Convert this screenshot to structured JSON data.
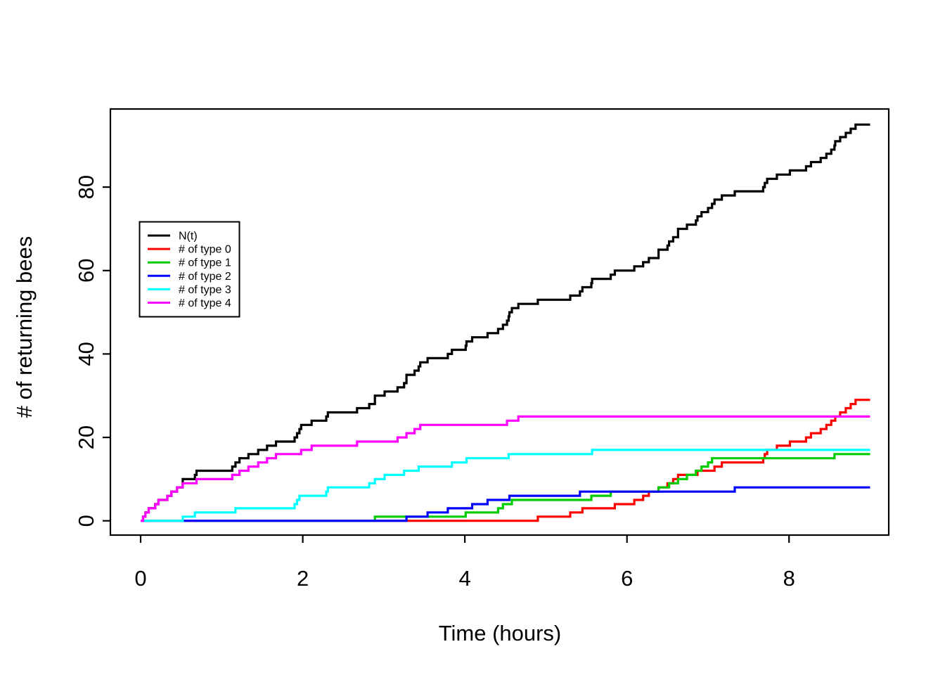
{
  "chart_data": {
    "type": "line",
    "subtype": "step-counting-process",
    "title": "",
    "xlabel": "Time (hours)",
    "ylabel": "# of returning bees",
    "x_range": [
      0,
      9
    ],
    "y_range": [
      0,
      95
    ],
    "x_ticks": [
      0,
      2,
      4,
      6,
      8
    ],
    "x_tick_labels": [
      "0",
      "2",
      "4",
      "6",
      "8"
    ],
    "y_ticks": [
      0,
      20,
      40,
      60,
      80
    ],
    "y_tick_labels": [
      "0",
      "20",
      "40",
      "60",
      "80"
    ],
    "grid": false,
    "legend_position": "upper-left-inside",
    "legend": [
      {
        "label": "N(t)",
        "color": "#000000"
      },
      {
        "label": "# of type 0",
        "color": "#FF0000"
      },
      {
        "label": "# of type 1",
        "color": "#00CC00"
      },
      {
        "label": "# of type 2",
        "color": "#0000FF"
      },
      {
        "label": "# of type 3",
        "color": "#00FFFF"
      },
      {
        "label": "# of type 4",
        "color": "#FF00FF"
      }
    ],
    "series": [
      {
        "name": "N(t)",
        "color": "#000000",
        "derived": "sum_of_all_types",
        "start_value": 0,
        "final_value": 95
      },
      {
        "name": "# of type 0",
        "color": "#FF0000",
        "start_value": 0,
        "final_value": 29,
        "jump_times": [
          4.9,
          5.3,
          5.45,
          5.85,
          6.09,
          6.2,
          6.27,
          6.39,
          6.5,
          6.57,
          6.63,
          6.87,
          7.08,
          7.17,
          7.68,
          7.7,
          7.73,
          7.85,
          8.01,
          8.21,
          8.27,
          8.39,
          8.46,
          8.52,
          8.57,
          8.63,
          8.7,
          8.76,
          8.82
        ]
      },
      {
        "name": "# of type 1",
        "color": "#00CC00",
        "start_value": 0,
        "final_value": 16,
        "jump_times": [
          2.89,
          4.01,
          4.41,
          4.47,
          4.58,
          5.56,
          5.8,
          6.39,
          6.52,
          6.63,
          6.74,
          6.85,
          6.92,
          7.0,
          7.05,
          8.56
        ]
      },
      {
        "name": "# of type 2",
        "color": "#0000FF",
        "start_value": 0,
        "final_value": 8,
        "jump_times": [
          3.28,
          3.54,
          3.79,
          4.09,
          4.28,
          4.55,
          5.42,
          7.33
        ]
      },
      {
        "name": "# of type 3",
        "color": "#00FFFF",
        "start_value": 0,
        "final_value": 17,
        "jump_times": [
          0.52,
          0.67,
          1.17,
          1.9,
          1.93,
          1.96,
          2.29,
          2.31,
          2.82,
          2.89,
          3.01,
          3.25,
          3.43,
          3.84,
          4.02,
          4.54,
          5.57
        ]
      },
      {
        "name": "# of type 4",
        "color": "#FF00FF",
        "start_value": 0,
        "final_value": 25,
        "jump_times": [
          0.03,
          0.06,
          0.1,
          0.18,
          0.22,
          0.33,
          0.38,
          0.45,
          0.52,
          0.69,
          1.13,
          1.22,
          1.33,
          1.45,
          1.56,
          1.67,
          1.98,
          2.11,
          2.67,
          3.17,
          3.28,
          3.38,
          3.45,
          4.52,
          4.66
        ]
      }
    ]
  }
}
